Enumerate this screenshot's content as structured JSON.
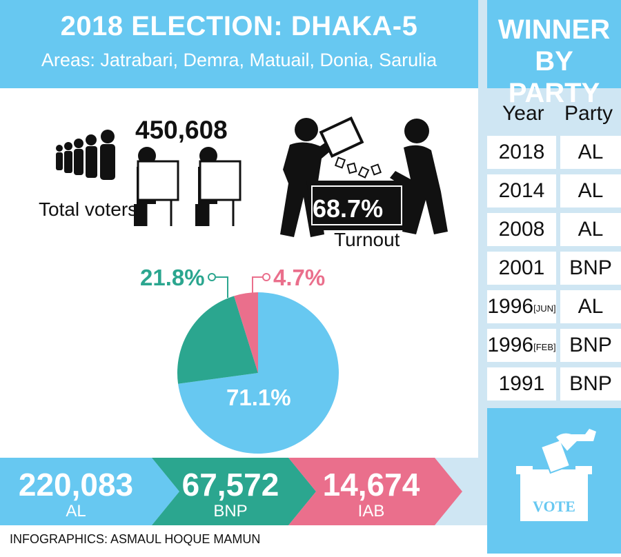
{
  "header": {
    "title": "2018 ELECTION: DHAKA-5",
    "subtitle": "Areas: Jatrabari, Demra, Matuail, Donia, Sarulia"
  },
  "stats": {
    "total_voters_value": "450,608",
    "total_voters_label": "Total voters",
    "turnout_value": "68.7%",
    "turnout_label": "Turnout"
  },
  "colors": {
    "blue": "#67c8f1",
    "teal": "#2ba68f",
    "pink": "#ea6f8c"
  },
  "chart_data": {
    "type": "pie",
    "slices": [
      {
        "label": "AL",
        "value": 71.1,
        "display": "71.1%",
        "color": "#67c8f1"
      },
      {
        "label": "BNP",
        "value": 21.8,
        "display": "21.8%",
        "color": "#2ba68f"
      },
      {
        "label": "IAB",
        "value": 4.7,
        "display": "4.7%",
        "color": "#ea6f8c"
      }
    ]
  },
  "results": [
    {
      "party": "AL",
      "votes": "220,083",
      "color": "#67c8f1"
    },
    {
      "party": "BNP",
      "votes": "67,572",
      "color": "#2ba68f"
    },
    {
      "party": "IAB",
      "votes": "14,674",
      "color": "#ea6f8c"
    }
  ],
  "winner": {
    "title_line1": "WINNER",
    "title_line2": "BY PARTY",
    "col_year": "Year",
    "col_party": "Party",
    "rows": [
      {
        "year": "2018",
        "sub": "",
        "party": "AL"
      },
      {
        "year": "2014",
        "sub": "",
        "party": "AL"
      },
      {
        "year": "2008",
        "sub": "",
        "party": "AL"
      },
      {
        "year": "2001",
        "sub": "",
        "party": "BNP"
      },
      {
        "year": "1996",
        "sub": "[JUN]",
        "party": "AL"
      },
      {
        "year": "1996",
        "sub": "[FEB]",
        "party": "BNP"
      },
      {
        "year": "1991",
        "sub": "",
        "party": "BNP"
      }
    ],
    "vote_label": "VOTE"
  },
  "footer": {
    "credit": "INFOGRAPHICS: ASMAUL HOQUE MAMUN"
  }
}
